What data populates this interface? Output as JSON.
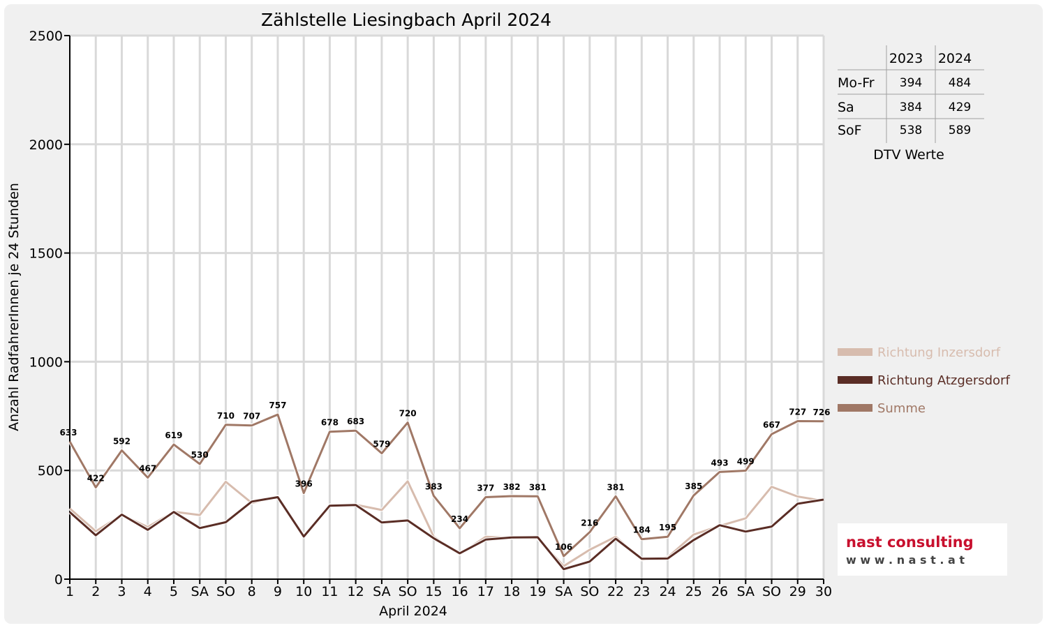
{
  "chart_data": {
    "type": "line",
    "title": "Zählstelle Liesingbach April 2024",
    "xlabel": "April 2024",
    "ylabel": "Anzahl RadfahrerInnen je 24 Stunden",
    "ylim": [
      0,
      2500
    ],
    "yticks": [
      "0",
      "500",
      "1000",
      "1500",
      "2000",
      "2500"
    ],
    "grid": true,
    "legend_position": "right",
    "categories": [
      "1",
      "2",
      "3",
      "4",
      "5",
      "SA",
      "SO",
      "8",
      "9",
      "10",
      "11",
      "12",
      "SA",
      "SO",
      "15",
      "16",
      "17",
      "18",
      "19",
      "SA",
      "SO",
      "22",
      "23",
      "24",
      "25",
      "26",
      "SA",
      "SO",
      "29",
      "30"
    ],
    "highlight_categories": [
      0,
      6,
      13,
      20,
      27
    ],
    "series": [
      {
        "name": "Richtung Inzersdorf",
        "color": "#d7bcae",
        "values": [
          325,
          220,
          295,
          240,
          310,
          295,
          448,
          350,
          380,
          200,
          340,
          342,
          318,
          450,
          195,
          115,
          195,
          190,
          188,
          60,
          135,
          195,
          90,
          100,
          205,
          245,
          280,
          425,
          380,
          360
        ]
      },
      {
        "name": "Richtung Atzgersdorf",
        "color": "#5a2d25",
        "values": [
          308,
          202,
          297,
          227,
          309,
          235,
          262,
          357,
          377,
          196,
          338,
          341,
          261,
          270,
          188,
          119,
          182,
          192,
          193,
          46,
          81,
          186,
          94,
          95,
          180,
          248,
          219,
          242,
          347,
          366
        ]
      },
      {
        "name": "Summe",
        "color": "#a07866",
        "values": [
          633,
          422,
          592,
          467,
          619,
          530,
          710,
          707,
          757,
          396,
          678,
          683,
          579,
          720,
          383,
          234,
          377,
          382,
          381,
          106,
          216,
          381,
          184,
          195,
          385,
          493,
          499,
          667,
          727,
          726
        ]
      }
    ],
    "data_labels": [
      "633",
      "422",
      "592",
      "467",
      "619",
      "530",
      "710",
      "707",
      "757",
      "396",
      "678",
      "683",
      "579",
      "720",
      "383",
      "234",
      "377",
      "382",
      "381",
      "106",
      "216",
      "381",
      "184",
      "195",
      "385",
      "493",
      "499",
      "667",
      "727",
      "726"
    ]
  },
  "dtv_table": {
    "headers": [
      "",
      "2023",
      "2024"
    ],
    "rows": [
      {
        "label": "Mo-Fr",
        "y2023": "394",
        "y2024": "484"
      },
      {
        "label": "Sa",
        "y2023": "384",
        "y2024": "429"
      },
      {
        "label": "SoF",
        "y2023": "538",
        "y2024": "589"
      }
    ],
    "caption": "DTV Werte"
  },
  "logo": {
    "line1": "nast consulting",
    "line2": "w w w . n a s t . a t"
  },
  "colors": {
    "highlight": "#ff0000",
    "grid": "#d9d9d9",
    "background": "#f0f0f0"
  }
}
